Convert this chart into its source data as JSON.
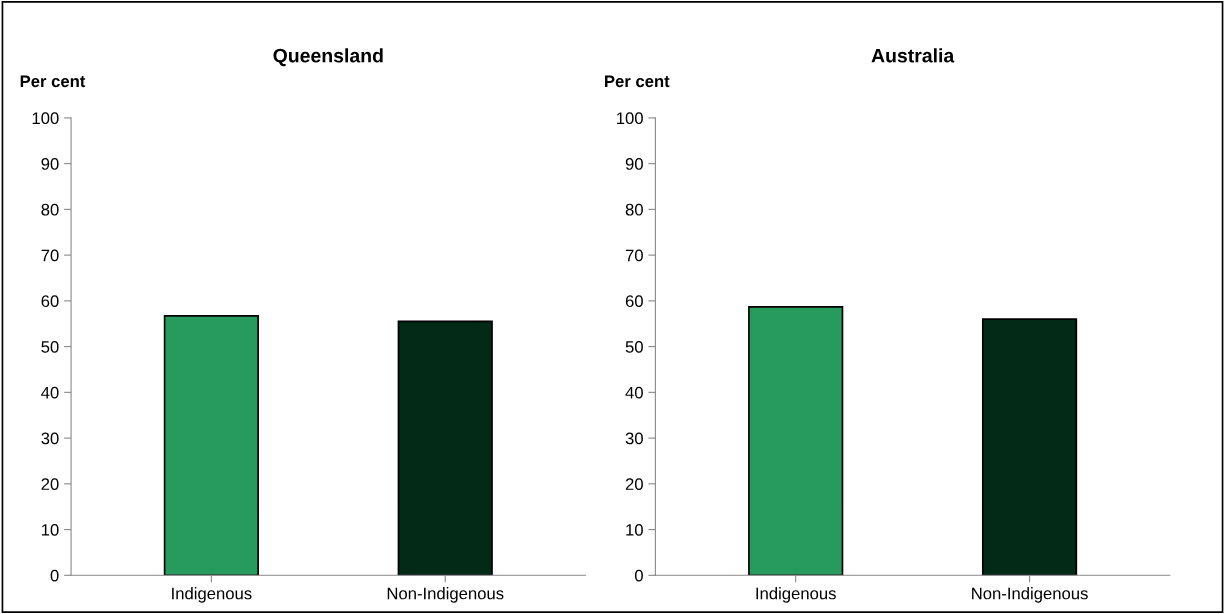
{
  "chart_data": [
    {
      "type": "bar",
      "title": "Queensland",
      "ylabel": "Per cent",
      "categories": [
        "Indigenous",
        "Non-Indigenous"
      ],
      "values": [
        56.7,
        55.5
      ],
      "colors": [
        "#279a5e",
        "#022a16"
      ],
      "ylim": [
        0,
        100
      ],
      "yticks": [
        0,
        10,
        20,
        30,
        40,
        50,
        60,
        70,
        80,
        90,
        100
      ],
      "grid": false,
      "legend": false
    },
    {
      "type": "bar",
      "title": "Australia",
      "ylabel": "Per cent",
      "categories": [
        "Indigenous",
        "Non-Indigenous"
      ],
      "values": [
        58.7,
        56.0
      ],
      "colors": [
        "#279a5e",
        "#022a16"
      ],
      "ylim": [
        0,
        100
      ],
      "yticks": [
        0,
        10,
        20,
        30,
        40,
        50,
        60,
        70,
        80,
        90,
        100
      ],
      "grid": false,
      "legend": false
    }
  ]
}
